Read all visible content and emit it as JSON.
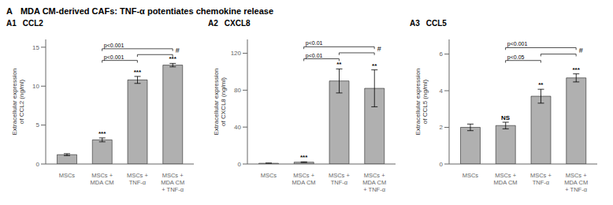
{
  "title": "A",
  "subtitle": "MDA CM-derived CAFs: TNF-α potentiates chemokine release",
  "chart_data": [
    {
      "type": "bar",
      "title": "A1",
      "subtitle": "CCL2",
      "ylabel": "Extracellular expression\nof CCL2 (ng/ml)",
      "categories": [
        "MSCs",
        "MSCs +\nMDA CM",
        "MSCs +\nTNF-α",
        "MSCs +\nMDA CM\n+ TNF-α"
      ],
      "values": [
        1.2,
        3.1,
        10.8,
        12.7
      ],
      "errors": [
        0.12,
        0.25,
        0.45,
        0.22
      ],
      "color": "#b0b0b0",
      "ylim": [
        0,
        16
      ],
      "yticks": [
        0,
        5,
        10,
        15
      ],
      "significance": [
        null,
        "***",
        "***",
        "***"
      ],
      "brackets": [
        {
          "from": 1,
          "to": 3,
          "y": 14.8,
          "label": "p<0.001"
        },
        {
          "from": 1,
          "to": 2,
          "y": 13.3,
          "label": "p<0.001"
        },
        {
          "from": 2,
          "to": 3,
          "y": 14.05,
          "label": "#"
        }
      ]
    },
    {
      "type": "bar",
      "title": "A2",
      "subtitle": "CXCL8",
      "ylabel": "Extracellular expression\nof CXCL8 (ng/ml)",
      "categories": [
        "MSCs",
        "MSCs +\nMDA CM",
        "MSCs +\nTNF-α",
        "MSCs +\nMDA CM\n+ TNF-α"
      ],
      "values": [
        0.8,
        2.0,
        90.0,
        82.0
      ],
      "errors": [
        0.15,
        0.3,
        13.0,
        20.0
      ],
      "color": "#b0b0b0",
      "ylim": [
        0,
        135
      ],
      "yticks": [
        0,
        40,
        80,
        120
      ],
      "significance": [
        null,
        "***",
        "**",
        "**"
      ],
      "brackets": [
        {
          "from": 1,
          "to": 3,
          "y": 127.0,
          "label": "p<0.01"
        },
        {
          "from": 1,
          "to": 2,
          "y": 114.0,
          "label": "p<0.01"
        },
        {
          "from": 2,
          "to": 3,
          "y": 120.5,
          "label": "#"
        }
      ]
    },
    {
      "type": "bar",
      "title": "A3",
      "subtitle": "CCL5",
      "ylabel": "Extracellular expression\nof CCL5 (ng/ml)",
      "categories": [
        "MSCs",
        "MSCs +\nMDA CM",
        "MSCs +\nTNF-α",
        "MSCs +\nMDA CM\n+ TNF-α"
      ],
      "values": [
        2.0,
        2.1,
        3.7,
        4.7
      ],
      "errors": [
        0.18,
        0.18,
        0.38,
        0.22
      ],
      "color": "#b0b0b0",
      "ylim": [
        0,
        6.8
      ],
      "yticks": [
        0,
        2,
        4,
        6
      ],
      "significance": [
        null,
        "NS",
        "**",
        "***"
      ],
      "brackets": [
        {
          "from": 1,
          "to": 3,
          "y": 6.35,
          "label": "p<0.001"
        },
        {
          "from": 1,
          "to": 2,
          "y": 5.65,
          "label": "p<0.05"
        },
        {
          "from": 2,
          "to": 3,
          "y": 6.0,
          "label": "#"
        }
      ]
    }
  ]
}
